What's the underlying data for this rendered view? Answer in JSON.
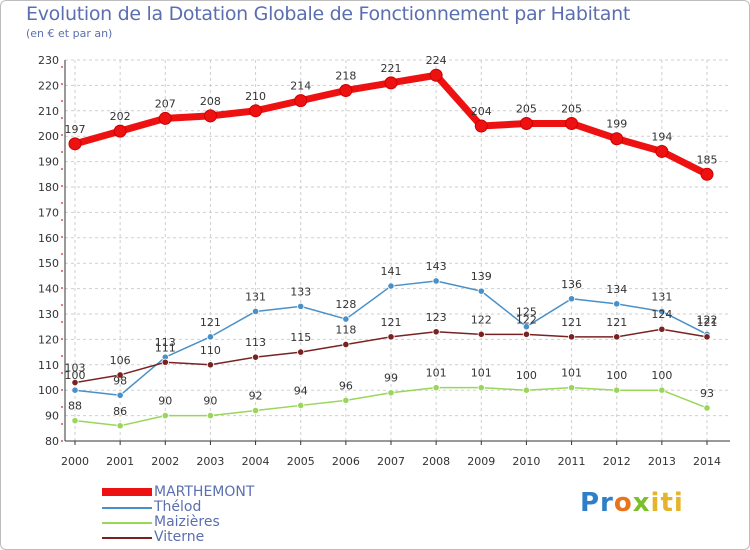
{
  "page": {
    "title": "Evolution de la Dotation Globale de Fonctionnement par Habitant",
    "subtitle": "(en € et par an)",
    "logo": "Proxiti",
    "logo_parts": [
      "Pr",
      "o",
      "x",
      "iti"
    ]
  },
  "chart_data": {
    "type": "line",
    "title": "Evolution de la Dotation Globale de Fonctionnement par Habitant",
    "subtitle": "(en € et par an)",
    "xlabel": "",
    "ylabel": "",
    "ylim": [
      80,
      230
    ],
    "y_ticks": [
      80,
      90,
      100,
      110,
      120,
      130,
      140,
      150,
      160,
      170,
      180,
      190,
      200,
      210,
      220,
      230
    ],
    "x": [
      "2000",
      "2001",
      "2002",
      "2003",
      "2004",
      "2005",
      "2006",
      "2007",
      "2008",
      "2009",
      "2010",
      "2011",
      "2012",
      "2013",
      "2014"
    ],
    "grid": true,
    "legend_position": "bottom-left",
    "series": [
      {
        "name": "MARTHEMONT",
        "color": "#ee1111",
        "values": [
          197,
          202,
          207,
          208,
          210,
          214,
          218,
          221,
          224,
          204,
          205,
          205,
          199,
          194,
          185
        ]
      },
      {
        "name": "Thélod",
        "color": "#4a90c8",
        "values": [
          100,
          98,
          113,
          121,
          131,
          133,
          128,
          141,
          143,
          139,
          125,
          136,
          134,
          131,
          122
        ]
      },
      {
        "name": "Maizières",
        "color": "#99d65a",
        "values": [
          88,
          86,
          90,
          90,
          92,
          94,
          96,
          99,
          101,
          101,
          100,
          101,
          100,
          100,
          93
        ]
      },
      {
        "name": "Viterne",
        "color": "#7a2222",
        "values": [
          103,
          106,
          111,
          110,
          113,
          115,
          118,
          121,
          123,
          122,
          122,
          121,
          121,
          124,
          121
        ]
      }
    ]
  }
}
